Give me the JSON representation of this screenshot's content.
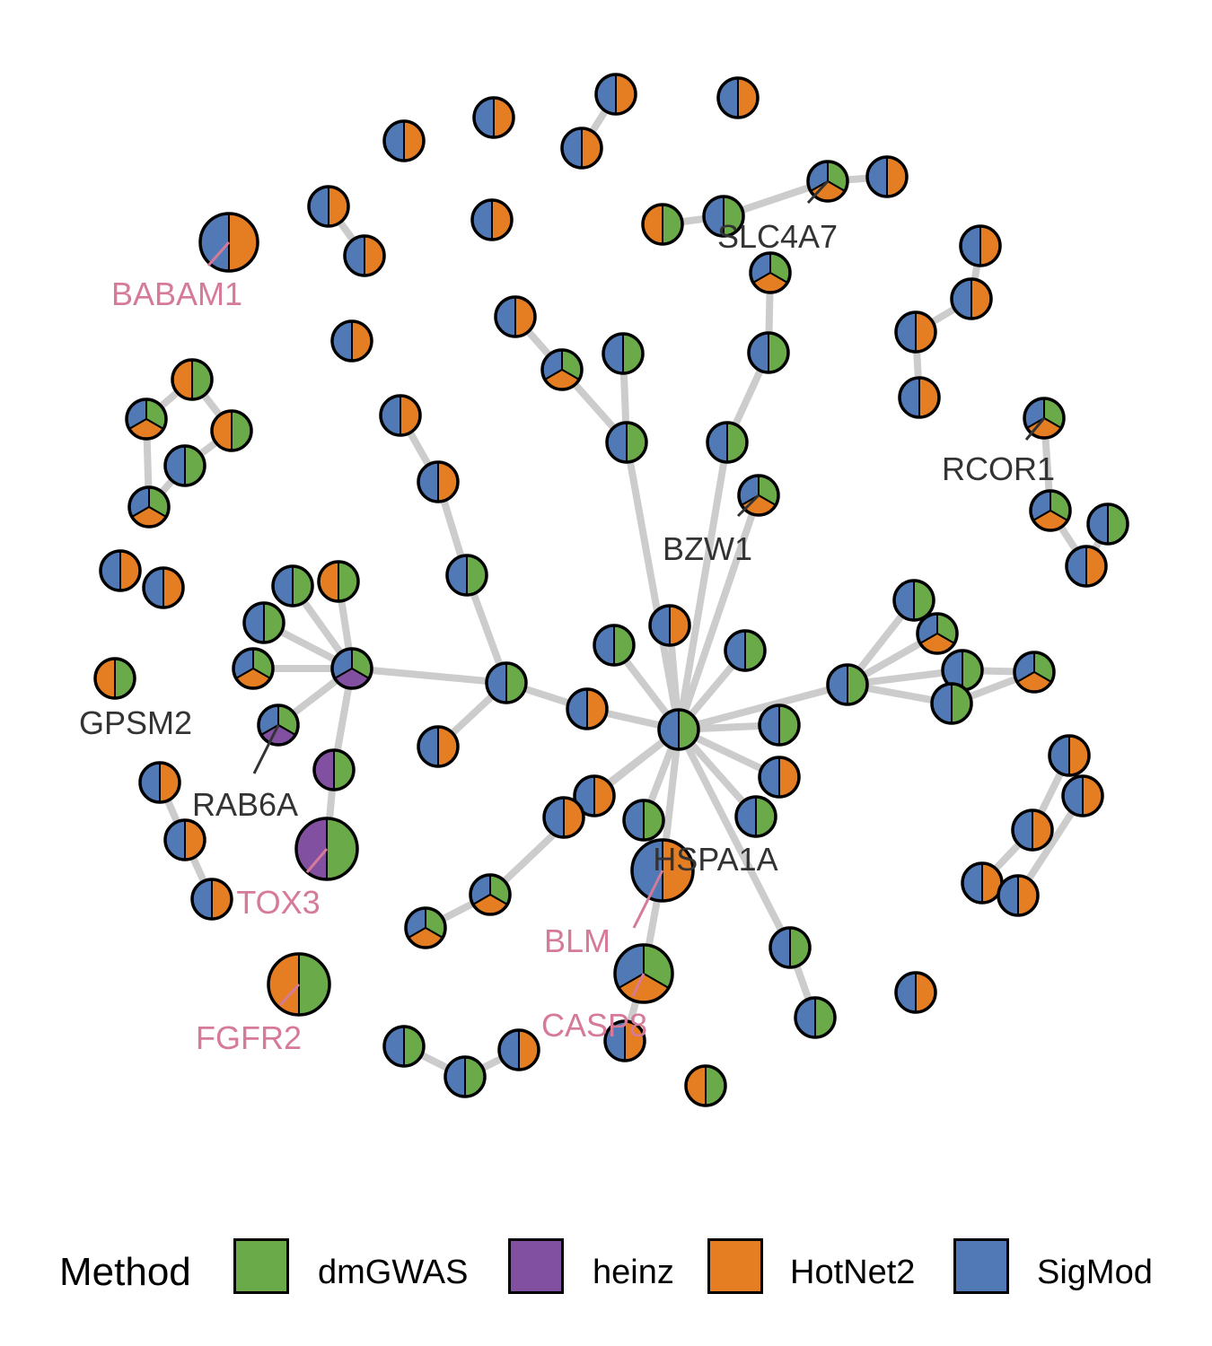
{
  "legend": {
    "title": "Method",
    "items": [
      {
        "label": "dmGWAS",
        "color": "#6aaa48"
      },
      {
        "label": "heinz",
        "color": "#8250a0"
      },
      {
        "label": "HotNet2",
        "color": "#e57e22"
      },
      {
        "label": "SigMod",
        "color": "#5179b5"
      }
    ]
  },
  "colors": {
    "edge": "#cccccc",
    "label_dark": "#333333",
    "label_pink": "#d67a99"
  },
  "labels": {
    "babam1": "BABAM1",
    "slc4a7": "SLC4A7",
    "rcor1": "RCOR1",
    "bzw1": "BZW1",
    "gpsm2": "GPSM2",
    "rab6a": "RAB6A",
    "tox3": "TOX3",
    "hspa1a": "HSPA1A",
    "blm": "BLM",
    "casp8": "CASP8",
    "fgfr2": "FGFR2"
  }
}
